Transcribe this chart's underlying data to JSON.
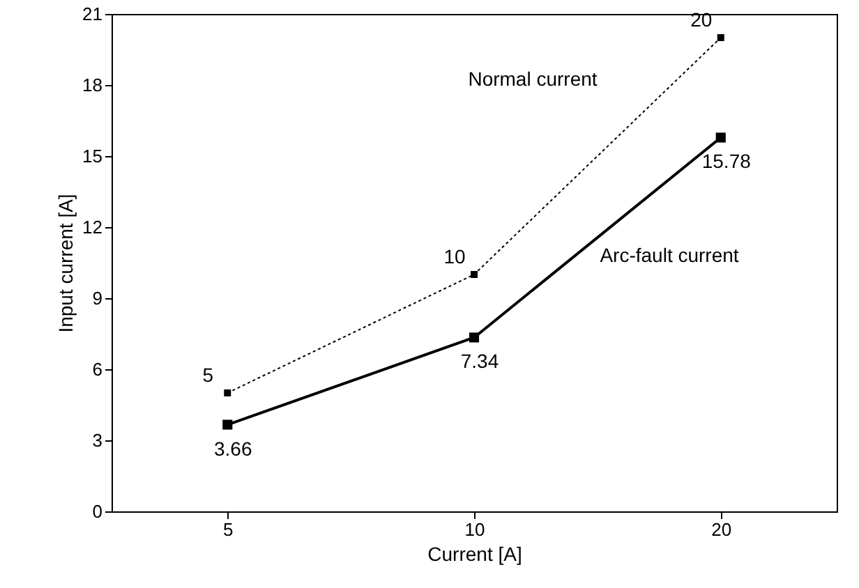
{
  "chart_data": {
    "type": "line",
    "xlabel": "Current [A]",
    "ylabel": "Input current [A]",
    "categories": [
      "5",
      "10",
      "20"
    ],
    "series": [
      {
        "name": "Normal current",
        "color": "#000000",
        "values": [
          5,
          10,
          20
        ],
        "line_style": "dotted"
      },
      {
        "name": "Arc-fault current",
        "color": "#000000",
        "values": [
          3.66,
          7.34,
          15.78
        ],
        "line_style": "solid"
      }
    ],
    "ylim": [
      0,
      21
    ],
    "yticks": [
      0,
      3,
      6,
      9,
      12,
      15,
      18,
      21
    ],
    "marker": "square",
    "data_labels": true,
    "legend": false
  }
}
